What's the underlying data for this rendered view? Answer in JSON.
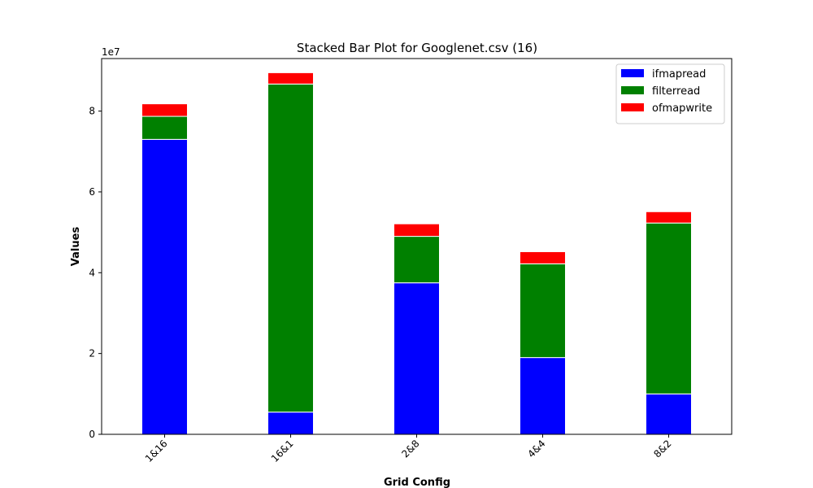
{
  "chart_data": {
    "type": "bar",
    "stacked": true,
    "title": "Stacked Bar Plot for Googlenet.csv (16)",
    "xlabel": "Grid Config",
    "ylabel": "Values",
    "scale_label": "1e7",
    "scale_factor": 10000000,
    "categories": [
      "1&16",
      "16&1",
      "2&8",
      "4&4",
      "8&2"
    ],
    "series": [
      {
        "name": "ifmapread",
        "color": "#0000ff",
        "values": [
          73000000,
          5500000,
          37500000,
          19000000,
          10000000
        ]
      },
      {
        "name": "filterread",
        "color": "#008000",
        "values": [
          5700000,
          81200000,
          11500000,
          23200000,
          42300000
        ]
      },
      {
        "name": "ofmapwrite",
        "color": "#ff0000",
        "values": [
          3100000,
          2800000,
          3100000,
          3000000,
          2800000
        ]
      }
    ],
    "ylim": [
      0,
      93000000
    ],
    "yticks": [
      0,
      2,
      4,
      6,
      8
    ],
    "grid": false,
    "legend_position": "top-right"
  }
}
